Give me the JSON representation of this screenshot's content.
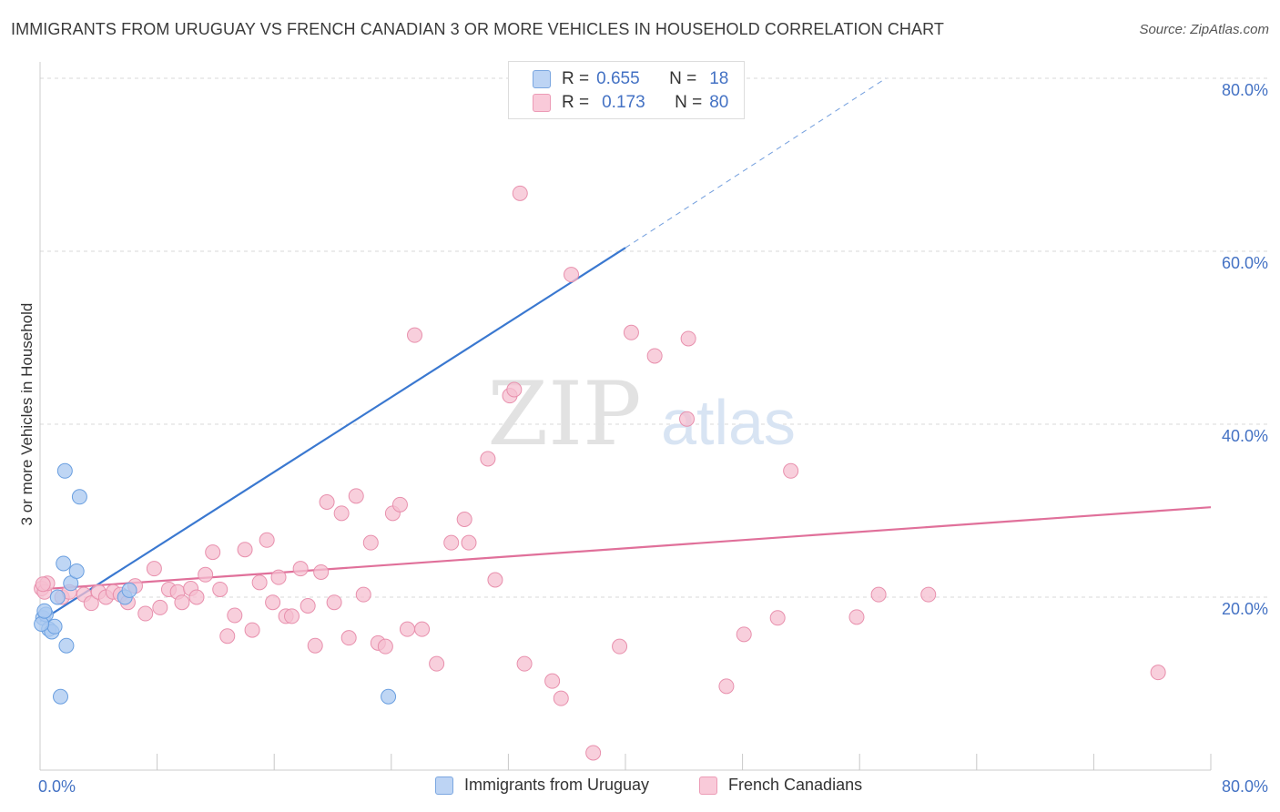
{
  "title": "IMMIGRANTS FROM URUGUAY VS FRENCH CANADIAN 3 OR MORE VEHICLES IN HOUSEHOLD CORRELATION CHART",
  "source": "Source: ZipAtlas.com",
  "watermark": {
    "zip": "ZIP",
    "atlas": "atlas"
  },
  "colors": {
    "uruguay_fill": "#aac8f0",
    "uruguay_stroke": "#6a9fe0",
    "uruguay_line": "#3a78d0",
    "french_fill": "#f6bfd0",
    "french_stroke": "#e890ad",
    "french_line": "#e0709a",
    "tick_label": "#4472c4",
    "grid": "#d8d8d8"
  },
  "legend": {
    "rows": [
      {
        "r_label": "R =",
        "r_value": "0.655",
        "n_label": "N =",
        "n_value": "18"
      },
      {
        "r_label": "R =",
        "r_value": "0.173",
        "n_label": "N =",
        "n_value": "80"
      }
    ]
  },
  "chart_data": {
    "type": "scatter",
    "title": "IMMIGRANTS FROM URUGUAY VS FRENCH CANADIAN 3 OR MORE VEHICLES IN HOUSEHOLD CORRELATION CHART",
    "xlabel": "",
    "ylabel": "3 or more Vehicles in Household",
    "xlim": [
      0,
      80
    ],
    "ylim": [
      0,
      80
    ],
    "x_tick_labels": [
      "0.0%",
      "80.0%"
    ],
    "y_ticks": [
      20,
      40,
      60,
      80
    ],
    "y_tick_labels": [
      "20.0%",
      "40.0%",
      "60.0%",
      "80.0%"
    ],
    "grid": true,
    "legend_position": "top-center",
    "series": [
      {
        "name": "Immigrants from Uruguay",
        "points": [
          [
            0.2,
            17.6
          ],
          [
            0.4,
            18.0
          ],
          [
            0.6,
            16.3
          ],
          [
            0.8,
            16.0
          ],
          [
            1.0,
            16.6
          ],
          [
            1.2,
            20.0
          ],
          [
            1.6,
            23.9
          ],
          [
            1.7,
            34.6
          ],
          [
            1.8,
            14.4
          ],
          [
            2.1,
            21.6
          ],
          [
            2.5,
            23.0
          ],
          [
            2.7,
            31.6
          ],
          [
            1.4,
            8.5
          ],
          [
            5.8,
            20.0
          ],
          [
            6.1,
            20.8
          ],
          [
            23.8,
            8.5
          ],
          [
            0.1,
            16.9
          ],
          [
            0.3,
            18.4
          ]
        ],
        "trend": {
          "x0": 0,
          "y0": 17.2,
          "x1": 40,
          "y1": 60.4,
          "dashed_to_x": 57.8,
          "dashed_to_y": 80.0
        }
      },
      {
        "name": "French Canadians",
        "points": [
          [
            0.1,
            21.0
          ],
          [
            0.3,
            20.6
          ],
          [
            0.5,
            21.6
          ],
          [
            1.5,
            20.0
          ],
          [
            2.0,
            20.6
          ],
          [
            3.0,
            20.3
          ],
          [
            3.5,
            19.3
          ],
          [
            4.0,
            20.6
          ],
          [
            4.5,
            20.0
          ],
          [
            5.0,
            20.6
          ],
          [
            5.5,
            20.3
          ],
          [
            6.0,
            19.4
          ],
          [
            6.5,
            21.3
          ],
          [
            7.2,
            18.1
          ],
          [
            7.8,
            23.3
          ],
          [
            8.2,
            18.8
          ],
          [
            8.8,
            20.9
          ],
          [
            9.4,
            20.6
          ],
          [
            9.7,
            19.4
          ],
          [
            10.3,
            21.0
          ],
          [
            10.7,
            20.0
          ],
          [
            11.3,
            22.6
          ],
          [
            11.8,
            25.2
          ],
          [
            12.3,
            20.9
          ],
          [
            12.8,
            15.5
          ],
          [
            13.3,
            17.9
          ],
          [
            14.0,
            25.5
          ],
          [
            14.5,
            16.2
          ],
          [
            15.0,
            21.7
          ],
          [
            15.5,
            26.6
          ],
          [
            15.9,
            19.4
          ],
          [
            16.3,
            22.3
          ],
          [
            16.8,
            17.8
          ],
          [
            17.2,
            17.8
          ],
          [
            17.8,
            23.3
          ],
          [
            18.3,
            19.0
          ],
          [
            18.8,
            14.4
          ],
          [
            19.2,
            22.9
          ],
          [
            19.6,
            31.0
          ],
          [
            20.1,
            19.4
          ],
          [
            20.6,
            29.7
          ],
          [
            21.1,
            15.3
          ],
          [
            21.6,
            31.7
          ],
          [
            22.1,
            20.3
          ],
          [
            22.6,
            26.3
          ],
          [
            23.1,
            14.7
          ],
          [
            23.6,
            14.3
          ],
          [
            24.1,
            29.7
          ],
          [
            24.6,
            30.7
          ],
          [
            25.1,
            16.3
          ],
          [
            25.6,
            50.3
          ],
          [
            26.1,
            16.3
          ],
          [
            27.1,
            12.3
          ],
          [
            28.1,
            26.3
          ],
          [
            29.0,
            29.0
          ],
          [
            29.3,
            26.3
          ],
          [
            30.6,
            36.0
          ],
          [
            31.1,
            22.0
          ],
          [
            32.1,
            43.3
          ],
          [
            32.4,
            44.0
          ],
          [
            32.8,
            66.7
          ],
          [
            33.1,
            12.3
          ],
          [
            35.0,
            10.3
          ],
          [
            35.6,
            8.3
          ],
          [
            36.3,
            57.3
          ],
          [
            37.8,
            2.0
          ],
          [
            39.6,
            14.3
          ],
          [
            40.4,
            50.6
          ],
          [
            42.0,
            47.9
          ],
          [
            44.2,
            40.6
          ],
          [
            44.3,
            49.9
          ],
          [
            46.9,
            9.7
          ],
          [
            48.1,
            15.7
          ],
          [
            50.4,
            17.6
          ],
          [
            51.3,
            34.6
          ],
          [
            55.8,
            17.7
          ],
          [
            57.3,
            20.3
          ],
          [
            60.7,
            20.3
          ],
          [
            76.4,
            11.3
          ],
          [
            0.2,
            21.5
          ]
        ],
        "trend": {
          "x0": 0,
          "y0": 20.9,
          "x1": 80,
          "y1": 30.4
        }
      }
    ]
  }
}
